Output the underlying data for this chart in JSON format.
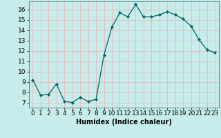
{
  "x": [
    0,
    1,
    2,
    3,
    4,
    5,
    6,
    7,
    8,
    9,
    10,
    11,
    12,
    13,
    14,
    15,
    16,
    17,
    18,
    19,
    20,
    21,
    22,
    23
  ],
  "y": [
    9.2,
    7.7,
    7.8,
    8.8,
    7.1,
    7.0,
    7.5,
    7.1,
    7.3,
    11.6,
    14.3,
    15.7,
    15.3,
    16.5,
    15.3,
    15.3,
    15.5,
    15.8,
    15.5,
    15.1,
    14.4,
    13.1,
    12.1,
    11.85
  ],
  "line_color": "#006060",
  "marker": "D",
  "marker_size": 2.2,
  "bg_color": "#c8ecec",
  "grid_color": "#e8b8b8",
  "xlabel": "Humidex (Indice chaleur)",
  "xlim": [
    -0.5,
    23.5
  ],
  "ylim": [
    6.5,
    16.8
  ],
  "yticks": [
    7,
    8,
    9,
    10,
    11,
    12,
    13,
    14,
    15,
    16
  ],
  "xtick_labels": [
    "0",
    "1",
    "2",
    "3",
    "4",
    "5",
    "6",
    "7",
    "8",
    "9",
    "10",
    "11",
    "12",
    "13",
    "14",
    "15",
    "16",
    "17",
    "18",
    "19",
    "20",
    "21",
    "22",
    "23"
  ],
  "xlabel_fontsize": 7,
  "tick_fontsize": 6.5
}
